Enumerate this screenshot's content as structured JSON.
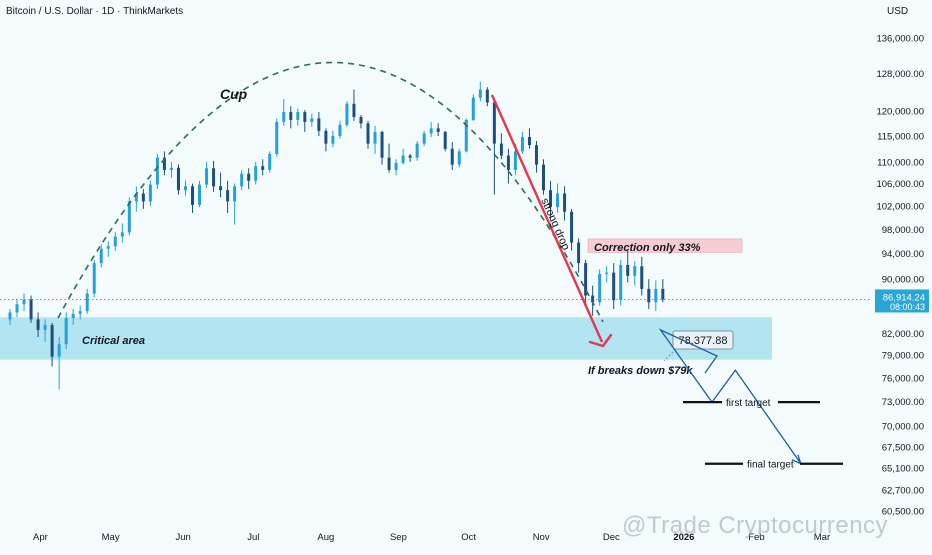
{
  "header": {
    "title": "Bitcoin / U.S. Dollar · 1D · ThinkMarkets",
    "currency": "USD"
  },
  "colors": {
    "up": "#26a0da",
    "down": "#1d4f7c",
    "drop_arrow": "#e5374a",
    "forecast": "#1f5ba6",
    "critical_zone": "#a6e1ee",
    "correction_zone": "#f7cdd3",
    "price_badge": "#29a5d6",
    "cup_line": "#2f6e56"
  },
  "chart_data": {
    "type": "candlestick",
    "title": "Bitcoin / U.S. Dollar · 1D · ThinkMarkets",
    "y_axis_ticks": [
      "136,000.00",
      "128,000.00",
      "120,000.00",
      "115,000.00",
      "110,000.00",
      "106,000.00",
      "102,000.00",
      "98,000.00",
      "94,000.00",
      "90,000.00",
      "82,000.00",
      "79,000.00",
      "76,000.00",
      "73,000.00",
      "70,000.00",
      "67,500.00",
      "65,100.00",
      "62,700.00",
      "60,500.00"
    ],
    "x_axis_ticks": [
      "Apr",
      "May",
      "Jun",
      "Jul",
      "Aug",
      "Sep",
      "Oct",
      "Nov",
      "Dec",
      "2026",
      "Feb",
      "Mar"
    ],
    "scale": "log",
    "ylim": [
      60000,
      140000
    ],
    "xlim": [
      "2025-03-19",
      "2026-03-10"
    ],
    "current_price": {
      "value": "86,914.24",
      "countdown": "08:00:43"
    },
    "annotations": {
      "cup": "Cup",
      "drop": "strong drop",
      "correction": "Correction only 33%",
      "critical": "Critical area",
      "breakdown_level": "78,377.88",
      "breakdown_note": "If breaks down $79k",
      "first_target": "first target",
      "final_target": "final target"
    },
    "zones": {
      "critical_area": [
        78400,
        84300
      ],
      "correction_area": [
        94200,
        96400
      ]
    },
    "forecast_path": [
      {
        "x": "2025-12-22",
        "y": 82500
      },
      {
        "x": "2026-01-13",
        "y": 72900
      },
      {
        "x": "2026-01-23",
        "y": 77000
      },
      {
        "x": "2026-02-20",
        "y": 65600
      }
    ],
    "target_levels": {
      "first_target": 72900,
      "final_target": 65600
    },
    "watermark": "@Trade Cryptocurrency",
    "ohlc": [
      [
        "2025-03-19",
        84000,
        85500,
        83200,
        85000
      ],
      [
        "2025-03-22",
        85000,
        87000,
        84300,
        86200
      ],
      [
        "2025-03-25",
        86200,
        87800,
        85200,
        86900
      ],
      [
        "2025-03-28",
        86900,
        87500,
        83500,
        84000
      ],
      [
        "2025-03-31",
        84000,
        85000,
        81500,
        82500
      ],
      [
        "2025-04-03",
        82500,
        84000,
        80800,
        83200
      ],
      [
        "2025-04-06",
        83200,
        83500,
        77500,
        78800
      ],
      [
        "2025-04-09",
        78800,
        81500,
        74500,
        80500
      ],
      [
        "2025-04-12",
        80500,
        85000,
        79800,
        84200
      ],
      [
        "2025-04-15",
        84200,
        85500,
        83200,
        84800
      ],
      [
        "2025-04-18",
        84800,
        86000,
        84000,
        85200
      ],
      [
        "2025-04-21",
        85200,
        88500,
        84800,
        87800
      ],
      [
        "2025-04-24",
        87800,
        93000,
        87200,
        92500
      ],
      [
        "2025-04-27",
        92500,
        95500,
        91800,
        94800
      ],
      [
        "2025-04-30",
        94800,
        96000,
        93500,
        95200
      ],
      [
        "2025-05-03",
        95200,
        97500,
        94500,
        96800
      ],
      [
        "2025-05-06",
        96800,
        99000,
        95800,
        97500
      ],
      [
        "2025-05-09",
        97500,
        103500,
        97000,
        102800
      ],
      [
        "2025-05-12",
        102800,
        105500,
        101000,
        104200
      ],
      [
        "2025-05-15",
        104200,
        105000,
        101500,
        102800
      ],
      [
        "2025-05-18",
        102800,
        106500,
        102000,
        105800
      ],
      [
        "2025-05-21",
        105800,
        111500,
        105000,
        110800
      ],
      [
        "2025-05-24",
        110800,
        112000,
        107500,
        108500
      ],
      [
        "2025-05-27",
        108500,
        110000,
        107000,
        108900
      ],
      [
        "2025-05-30",
        108900,
        109500,
        104000,
        104800
      ],
      [
        "2025-06-02",
        104800,
        106500,
        103800,
        105500
      ],
      [
        "2025-06-05",
        105500,
        106000,
        100800,
        102200
      ],
      [
        "2025-06-08",
        102200,
        106500,
        101800,
        105800
      ],
      [
        "2025-06-11",
        105800,
        110000,
        105200,
        108800
      ],
      [
        "2025-06-14",
        108800,
        110200,
        104500,
        105500
      ],
      [
        "2025-06-17",
        105500,
        108000,
        103500,
        104800
      ],
      [
        "2025-06-20",
        104800,
        106500,
        100800,
        102800
      ],
      [
        "2025-06-23",
        102800,
        106000,
        98800,
        105500
      ],
      [
        "2025-06-26",
        105500,
        108500,
        104800,
        107800
      ],
      [
        "2025-06-29",
        107800,
        108800,
        105000,
        106500
      ],
      [
        "2025-07-02",
        106500,
        110000,
        105800,
        109200
      ],
      [
        "2025-07-05",
        109200,
        110500,
        107500,
        108500
      ],
      [
        "2025-07-08",
        108500,
        112000,
        108000,
        111500
      ],
      [
        "2025-07-11",
        111500,
        118500,
        111000,
        117800
      ],
      [
        "2025-07-14",
        117800,
        122500,
        117000,
        119800
      ],
      [
        "2025-07-17",
        119800,
        121000,
        116500,
        118200
      ],
      [
        "2025-07-20",
        118200,
        120500,
        117000,
        119800
      ],
      [
        "2025-07-23",
        119800,
        120200,
        115800,
        117800
      ],
      [
        "2025-07-26",
        117800,
        119500,
        116800,
        118500
      ],
      [
        "2025-07-29",
        118500,
        119800,
        115000,
        116000
      ],
      [
        "2025-08-01",
        116000,
        116500,
        112000,
        113500
      ],
      [
        "2025-08-04",
        113500,
        116000,
        112800,
        115000
      ],
      [
        "2025-08-07",
        115000,
        118000,
        114500,
        117200
      ],
      [
        "2025-08-10",
        117200,
        122000,
        116800,
        121500
      ],
      [
        "2025-08-13",
        121500,
        124500,
        118000,
        118800
      ],
      [
        "2025-08-16",
        118800,
        119200,
        116500,
        117500
      ],
      [
        "2025-08-19",
        117500,
        118000,
        112500,
        113500
      ],
      [
        "2025-08-22",
        113500,
        117000,
        111500,
        115800
      ],
      [
        "2025-08-25",
        115800,
        116000,
        109500,
        110800
      ],
      [
        "2025-08-28",
        110800,
        113500,
        108000,
        108500
      ],
      [
        "2025-08-31",
        108500,
        110500,
        107500,
        109800
      ],
      [
        "2025-09-03",
        109800,
        112500,
        109500,
        111200
      ],
      [
        "2025-09-06",
        111200,
        111500,
        110000,
        110800
      ],
      [
        "2025-09-09",
        110800,
        114000,
        110200,
        113500
      ],
      [
        "2025-09-12",
        113500,
        116000,
        113000,
        115500
      ],
      [
        "2025-09-15",
        115500,
        117800,
        114800,
        116500
      ],
      [
        "2025-09-18",
        116500,
        117500,
        115000,
        115800
      ],
      [
        "2025-09-21",
        115800,
        116000,
        112000,
        112500
      ],
      [
        "2025-09-24",
        112500,
        113800,
        108500,
        109500
      ],
      [
        "2025-09-27",
        109500,
        112500,
        109000,
        112000
      ],
      [
        "2025-09-30",
        112000,
        118500,
        111800,
        118200
      ],
      [
        "2025-10-03",
        118200,
        123500,
        118000,
        122800
      ],
      [
        "2025-10-06",
        122800,
        126200,
        122000,
        124500
      ],
      [
        "2025-10-09",
        124500,
        125000,
        121000,
        121800
      ],
      [
        "2025-10-12",
        121800,
        122000,
        104000,
        113500
      ],
      [
        "2025-10-15",
        113500,
        115500,
        110500,
        111200
      ],
      [
        "2025-10-18",
        111200,
        112500,
        106000,
        108500
      ],
      [
        "2025-10-21",
        108500,
        113500,
        107500,
        112000
      ],
      [
        "2025-10-24",
        112000,
        115800,
        111500,
        114800
      ],
      [
        "2025-10-27",
        114800,
        116500,
        112500,
        113200
      ],
      [
        "2025-10-30",
        113200,
        114000,
        108000,
        109500
      ],
      [
        "2025-11-02",
        109500,
        110500,
        104000,
        104800
      ],
      [
        "2025-11-05",
        104800,
        106500,
        99500,
        101800
      ],
      [
        "2025-11-08",
        101800,
        106000,
        100800,
        104200
      ],
      [
        "2025-11-11",
        104200,
        105500,
        99500,
        101000
      ],
      [
        "2025-11-14",
        101000,
        101500,
        94500,
        95800
      ],
      [
        "2025-11-17",
        95800,
        96500,
        91000,
        92500
      ],
      [
        "2025-11-20",
        92500,
        93000,
        86000,
        87500
      ],
      [
        "2025-11-23",
        87500,
        89000,
        84500,
        86500
      ],
      [
        "2025-11-26",
        86500,
        91500,
        86000,
        90800
      ],
      [
        "2025-11-29",
        90800,
        92000,
        89500,
        91000
      ],
      [
        "2025-12-02",
        91000,
        92500,
        85500,
        86800
      ],
      [
        "2025-12-05",
        86800,
        93000,
        86000,
        92200
      ],
      [
        "2025-12-08",
        92200,
        94500,
        89500,
        90500
      ],
      [
        "2025-12-11",
        90500,
        92800,
        89000,
        92000
      ],
      [
        "2025-12-14",
        92000,
        93500,
        87500,
        88500
      ],
      [
        "2025-12-17",
        88500,
        90000,
        85500,
        86500
      ],
      [
        "2025-12-20",
        86500,
        89800,
        85200,
        88500
      ],
      [
        "2025-12-23",
        88500,
        90000,
        86500,
        86914
      ]
    ]
  }
}
